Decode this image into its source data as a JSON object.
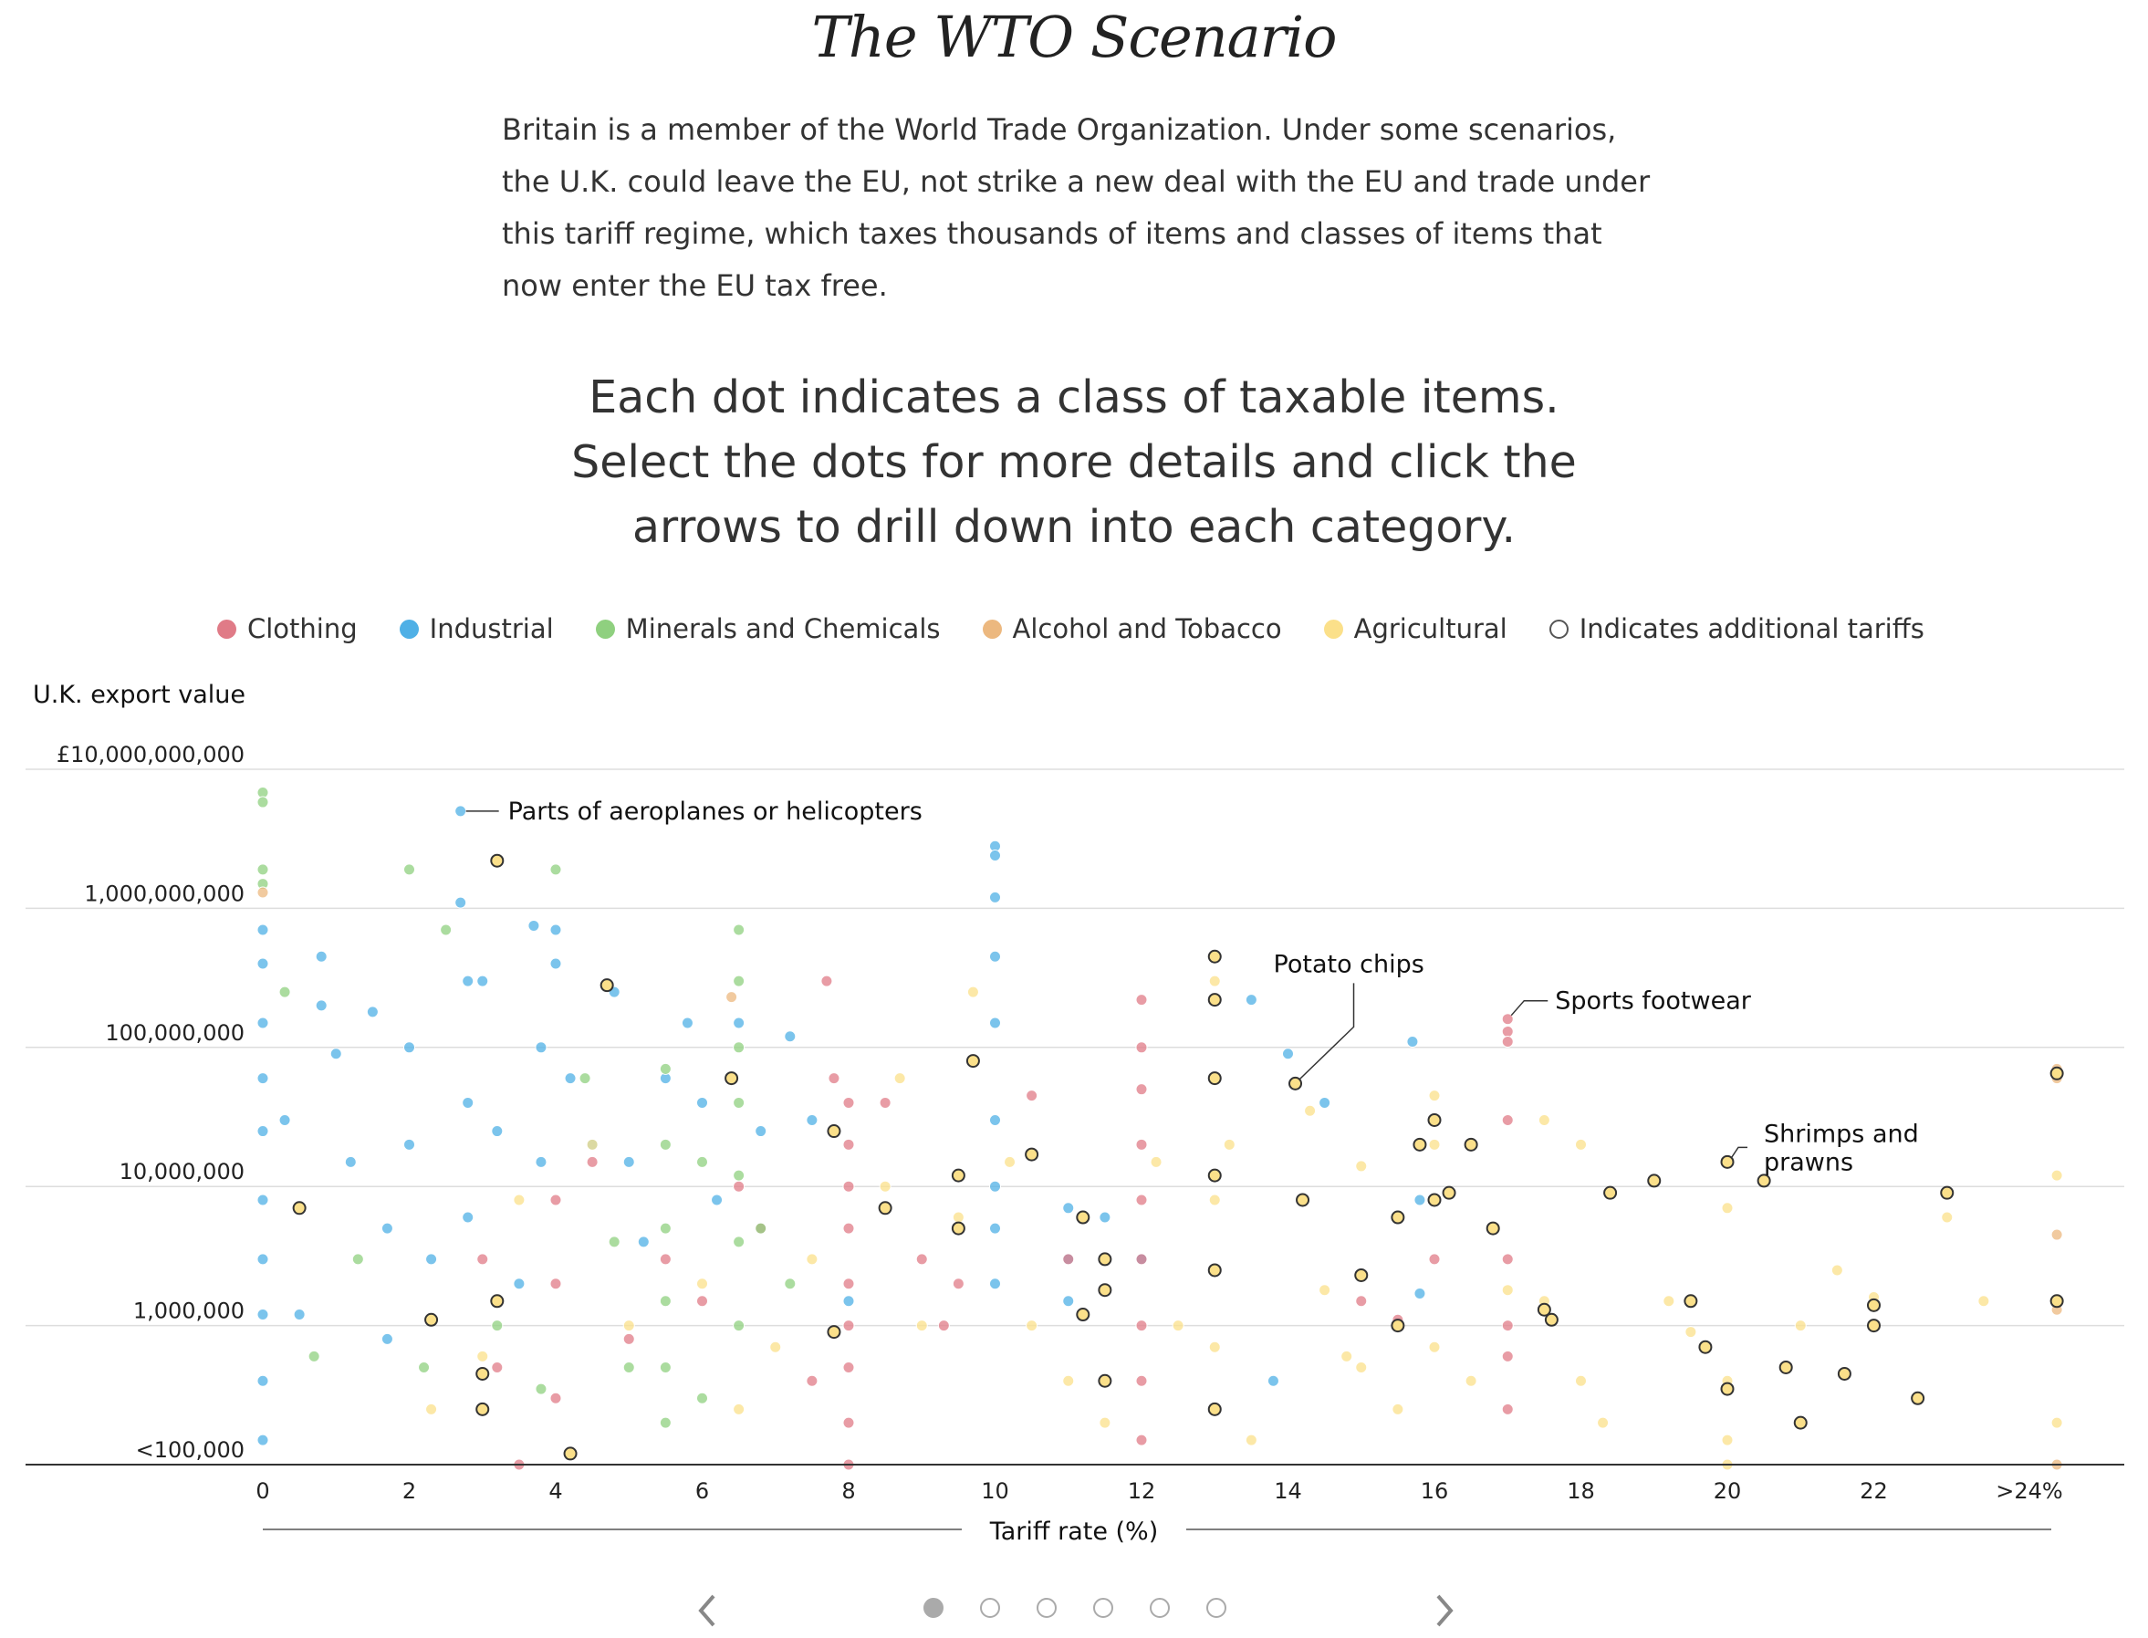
{
  "header": {
    "title": "The WTO Scenario",
    "intro": "Britain is a member of the World Trade Organization. Under some scenarios, the U.K. could leave the EU, not strike a new deal with the EU and trade under this tariff regime, which taxes thousands of items and classes of items that now enter the EU tax free.",
    "instruction": "Each dot indicates a class of taxable items. Select the dots for more details and click the arrows to drill down into each category."
  },
  "legend": [
    {
      "label": "Clothing",
      "color": "#e07b87",
      "outline": false
    },
    {
      "label": "Industrial",
      "color": "#4fb0e6",
      "outline": false
    },
    {
      "label": "Minerals and Chemicals",
      "color": "#8fd07f",
      "outline": false
    },
    {
      "label": "Alcohol and Tobacco",
      "color": "#ecb87f",
      "outline": false
    },
    {
      "label": "Agricultural",
      "color": "#fbe08a",
      "outline": false
    },
    {
      "label": "Indicates additional tariffs",
      "color": "#555555",
      "outline": true
    }
  ],
  "chart_data": {
    "type": "scatter",
    "ylabel": "U.K. export value",
    "xlabel": "Tariff rate (%)",
    "y_scale": "log",
    "y_ticks": [
      "£10,000,000,000",
      "1,000,000,000",
      "100,000,000",
      "10,000,000",
      "1,000,000",
      "<100,000"
    ],
    "x_ticks": [
      "0",
      "2",
      "4",
      "6",
      "8",
      "10",
      "12",
      "14",
      "16",
      "18",
      "20",
      "22",
      ">24%"
    ],
    "xlim": [
      0,
      24.5
    ],
    "ylim": [
      100000,
      10000000000
    ],
    "grid": true,
    "colors": {
      "Clothing": "#e07b87",
      "Industrial": "#4fb0e6",
      "Minerals and Chemicals": "#8fd07f",
      "Alcohol and Tobacco": "#ecb87f",
      "Agricultural": "#fbe08a"
    },
    "annotations": [
      {
        "text": "Parts of aeroplanes or helicopters",
        "x": 2.7,
        "y": 5000000000
      },
      {
        "text": "Potato chips",
        "x": 14.1,
        "y": 55000000
      },
      {
        "text": "Sports footwear",
        "x": 17.0,
        "y": 160000000
      },
      {
        "text": "Shrimps and prawns",
        "x": 20.0,
        "y": 15000000
      }
    ],
    "series": [
      {
        "name": "Industrial",
        "points": [
          [
            0,
            700000000
          ],
          [
            0,
            400000000
          ],
          [
            0,
            150000000
          ],
          [
            0,
            60000000
          ],
          [
            0,
            25000000
          ],
          [
            0,
            8000000
          ],
          [
            0,
            3000000
          ],
          [
            0,
            1200000
          ],
          [
            0,
            400000
          ],
          [
            0,
            150000
          ],
          [
            0.3,
            30000000
          ],
          [
            0.5,
            1200000
          ],
          [
            0.8,
            450000000
          ],
          [
            0.8,
            200000000
          ],
          [
            1,
            90000000
          ],
          [
            1.2,
            15000000
          ],
          [
            1.5,
            180000000
          ],
          [
            1.7,
            5000000
          ],
          [
            1.7,
            800000
          ],
          [
            2,
            100000000
          ],
          [
            2,
            20000000
          ],
          [
            2.3,
            3000000
          ],
          [
            2.7,
            5000000000
          ],
          [
            2.7,
            1100000000
          ],
          [
            2.8,
            300000000
          ],
          [
            2.8,
            40000000
          ],
          [
            2.8,
            6000000
          ],
          [
            3,
            300000000
          ],
          [
            3.2,
            25000000
          ],
          [
            3.5,
            2000000
          ],
          [
            3.7,
            750000000
          ],
          [
            3.8,
            100000000
          ],
          [
            3.8,
            15000000
          ],
          [
            4,
            700000000
          ],
          [
            4,
            400000000
          ],
          [
            4.2,
            60000000
          ],
          [
            4.5,
            20000000
          ],
          [
            4.8,
            250000000
          ],
          [
            5,
            15000000
          ],
          [
            5.2,
            4000000
          ],
          [
            5.5,
            60000000
          ],
          [
            5.8,
            150000000
          ],
          [
            6,
            40000000
          ],
          [
            6.2,
            8000000
          ],
          [
            6.5,
            150000000
          ],
          [
            6.8,
            25000000
          ],
          [
            7.2,
            120000000
          ],
          [
            7.5,
            30000000
          ],
          [
            8,
            1500000
          ],
          [
            10,
            2800000000
          ],
          [
            10,
            2400000000
          ],
          [
            10,
            1200000000
          ],
          [
            10,
            450000000
          ],
          [
            10,
            150000000
          ],
          [
            10,
            30000000
          ],
          [
            10,
            10000000
          ],
          [
            10,
            5000000
          ],
          [
            10,
            2000000
          ],
          [
            11,
            7000000
          ],
          [
            11,
            3000000
          ],
          [
            11,
            1500000
          ],
          [
            11.5,
            6000000
          ],
          [
            12,
            3000000
          ],
          [
            13.5,
            220000000
          ],
          [
            13.8,
            400000
          ],
          [
            14,
            90000000
          ],
          [
            14.5,
            40000000
          ],
          [
            15.7,
            110000000
          ],
          [
            15.8,
            8000000
          ],
          [
            15.8,
            1700000
          ]
        ]
      },
      {
        "name": "Clothing",
        "points": [
          [
            3,
            3000000
          ],
          [
            3.2,
            500000
          ],
          [
            3.5,
            100000
          ],
          [
            4,
            8000000
          ],
          [
            4,
            2000000
          ],
          [
            4,
            300000
          ],
          [
            4.5,
            15000000
          ],
          [
            5,
            800000
          ],
          [
            5.5,
            3000000
          ],
          [
            6,
            1500000
          ],
          [
            6.5,
            10000000
          ],
          [
            6.8,
            5000000
          ],
          [
            7.5,
            400000
          ],
          [
            7.7,
            300000000
          ],
          [
            7.8,
            60000000
          ],
          [
            8,
            40000000
          ],
          [
            8,
            20000000
          ],
          [
            8,
            10000000
          ],
          [
            8,
            5000000
          ],
          [
            8,
            2000000
          ],
          [
            8,
            1000000
          ],
          [
            8,
            500000
          ],
          [
            8,
            200000
          ],
          [
            8,
            100000
          ],
          [
            8.5,
            40000000
          ],
          [
            9,
            3000000
          ],
          [
            9.3,
            1000000
          ],
          [
            9.5,
            2000000
          ],
          [
            10.5,
            45000000
          ],
          [
            11,
            3000000
          ],
          [
            12,
            220000000
          ],
          [
            12,
            100000000
          ],
          [
            12,
            50000000
          ],
          [
            12,
            20000000
          ],
          [
            12,
            8000000
          ],
          [
            12,
            3000000
          ],
          [
            12,
            1000000
          ],
          [
            12,
            400000
          ],
          [
            12,
            150000
          ],
          [
            15,
            1500000
          ],
          [
            15.5,
            1100000
          ],
          [
            16,
            3000000
          ],
          [
            17,
            160000000
          ],
          [
            17,
            130000000
          ],
          [
            17,
            110000000
          ],
          [
            17,
            30000000
          ],
          [
            17,
            3000000
          ],
          [
            17,
            1000000
          ],
          [
            17,
            600000
          ],
          [
            17,
            250000
          ]
        ]
      },
      {
        "name": "Minerals and Chemicals",
        "points": [
          [
            0,
            6800000000
          ],
          [
            0,
            5800000000
          ],
          [
            0,
            1900000000
          ],
          [
            0,
            1500000000
          ],
          [
            0.3,
            250000000
          ],
          [
            0.7,
            600000
          ],
          [
            1.3,
            3000000
          ],
          [
            2,
            1900000000
          ],
          [
            2.2,
            500000
          ],
          [
            2.5,
            700000000
          ],
          [
            3.2,
            1000000
          ],
          [
            3.8,
            350000
          ],
          [
            4,
            1900000000
          ],
          [
            4.4,
            60000000
          ],
          [
            4.8,
            4000000
          ],
          [
            5,
            500000
          ],
          [
            5.5,
            70000000
          ],
          [
            5.5,
            20000000
          ],
          [
            5.5,
            5000000
          ],
          [
            5.5,
            1500000
          ],
          [
            5.5,
            500000
          ],
          [
            5.5,
            200000
          ],
          [
            6,
            15000000
          ],
          [
            6,
            300000
          ],
          [
            6.5,
            700000000
          ],
          [
            6.5,
            300000000
          ],
          [
            6.5,
            100000000
          ],
          [
            6.5,
            40000000
          ],
          [
            6.5,
            12000000
          ],
          [
            6.5,
            4000000
          ],
          [
            6.5,
            1000000
          ],
          [
            6.8,
            5000000
          ],
          [
            7.2,
            2000000
          ]
        ]
      },
      {
        "name": "Alcohol and Tobacco",
        "points": [
          [
            0,
            1300000000
          ],
          [
            6.4,
            230000000
          ],
          [
            24.5,
            70000000
          ],
          [
            24.5,
            60000000
          ],
          [
            24.5,
            4500000
          ],
          [
            24.5,
            1300000
          ],
          [
            24.5,
            100000
          ]
        ]
      },
      {
        "name": "Agricultural",
        "points": [
          [
            2.3,
            250000
          ],
          [
            3,
            600000
          ],
          [
            3.5,
            8000000
          ],
          [
            4.5,
            20000000
          ],
          [
            5,
            1000000
          ],
          [
            6,
            2000000
          ],
          [
            6.5,
            250000
          ],
          [
            7,
            700000
          ],
          [
            7.5,
            3000000
          ],
          [
            8.5,
            10000000
          ],
          [
            8.7,
            60000000
          ],
          [
            9,
            1000000
          ],
          [
            9.5,
            6000000
          ],
          [
            9.7,
            250000000
          ],
          [
            10.2,
            15000000
          ],
          [
            10.5,
            1000000
          ],
          [
            11,
            400000
          ],
          [
            11.5,
            200000
          ],
          [
            12.2,
            15000000
          ],
          [
            12.5,
            1000000
          ],
          [
            13,
            300000000
          ],
          [
            13,
            8000000
          ],
          [
            13,
            700000
          ],
          [
            13.2,
            20000000
          ],
          [
            13.5,
            150000
          ],
          [
            14.3,
            35000000
          ],
          [
            14.5,
            1800000
          ],
          [
            14.8,
            600000
          ],
          [
            15,
            14000000
          ],
          [
            15,
            500000
          ],
          [
            15.5,
            250000
          ],
          [
            16,
            45000000
          ],
          [
            16,
            20000000
          ],
          [
            16,
            700000
          ],
          [
            16.5,
            400000
          ],
          [
            17,
            1800000
          ],
          [
            17.5,
            30000000
          ],
          [
            17.5,
            1500000
          ],
          [
            18,
            20000000
          ],
          [
            18,
            400000
          ],
          [
            18.3,
            200000
          ],
          [
            19.2,
            1500000
          ],
          [
            19.5,
            900000
          ],
          [
            20,
            7000000
          ],
          [
            20,
            400000
          ],
          [
            20,
            150000
          ],
          [
            20,
            100000
          ],
          [
            21,
            1000000
          ],
          [
            21.5,
            2500000
          ],
          [
            22,
            1600000
          ],
          [
            23,
            6000000
          ],
          [
            23.5,
            1500000
          ],
          [
            24.5,
            12000000
          ],
          [
            24.5,
            200000
          ]
        ]
      },
      {
        "name": "Indicates additional tariffs",
        "points": [
          [
            0.5,
            7000000
          ],
          [
            2.3,
            1100000
          ],
          [
            3,
            450000
          ],
          [
            3,
            250000
          ],
          [
            3.2,
            2200000000
          ],
          [
            3.2,
            1500000
          ],
          [
            4.2,
            120000
          ],
          [
            4.7,
            280000000
          ],
          [
            6.4,
            60000000
          ],
          [
            7.8,
            25000000
          ],
          [
            7.8,
            900000
          ],
          [
            8.5,
            7000000
          ],
          [
            9.5,
            12000000
          ],
          [
            9.5,
            5000000
          ],
          [
            9.7,
            80000000
          ],
          [
            10.5,
            17000000
          ],
          [
            11.2,
            1200000
          ],
          [
            11.2,
            6000000
          ],
          [
            11.5,
            3000000
          ],
          [
            11.5,
            1800000
          ],
          [
            11.5,
            400000
          ],
          [
            13,
            450000000
          ],
          [
            13,
            220000000
          ],
          [
            13,
            60000000
          ],
          [
            13,
            12000000
          ],
          [
            13,
            2500000
          ],
          [
            13,
            250000
          ],
          [
            14.1,
            55000000
          ],
          [
            14.2,
            8000000
          ],
          [
            15,
            2300000
          ],
          [
            15.5,
            1000000
          ],
          [
            15.5,
            6000000
          ],
          [
            15.8,
            20000000
          ],
          [
            16,
            30000000
          ],
          [
            16,
            8000000
          ],
          [
            16.2,
            9000000
          ],
          [
            16.5,
            20000000
          ],
          [
            16.8,
            5000000
          ],
          [
            17.5,
            1300000
          ],
          [
            17.6,
            1100000
          ],
          [
            18.4,
            9000000
          ],
          [
            19,
            11000000
          ],
          [
            19.5,
            1500000
          ],
          [
            19.7,
            700000
          ],
          [
            20,
            15000000
          ],
          [
            20,
            350000
          ],
          [
            20.5,
            11000000
          ],
          [
            20.8,
            500000
          ],
          [
            21,
            200000
          ],
          [
            21.6,
            450000
          ],
          [
            22,
            1400000
          ],
          [
            22,
            1000000
          ],
          [
            22.6,
            300000
          ],
          [
            23,
            9000000
          ],
          [
            24.5,
            65000000
          ],
          [
            24.5,
            1500000
          ]
        ]
      }
    ]
  },
  "pager": {
    "pages": 6,
    "active": 0
  }
}
